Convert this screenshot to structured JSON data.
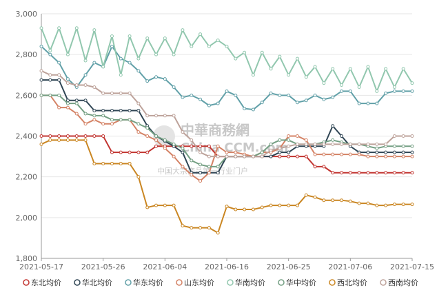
{
  "chart_data": {
    "type": "line",
    "title": "",
    "xlabel": "",
    "ylabel": "",
    "ylim": [
      1800,
      3000
    ],
    "y_ticks": [
      "1,800",
      "2,000",
      "2,200",
      "2,400",
      "2,600",
      "2,800",
      "3,000"
    ],
    "y_tick_values": [
      1800,
      2000,
      2200,
      2400,
      2600,
      2800,
      3000
    ],
    "x": [
      "2021-05-17",
      "2021-05-18",
      "2021-05-19",
      "2021-05-20",
      "2021-05-21",
      "2021-05-24",
      "2021-05-25",
      "2021-05-26",
      "2021-05-27",
      "2021-05-28",
      "2021-05-31",
      "2021-06-01",
      "2021-06-02",
      "2021-06-03",
      "2021-06-04",
      "2021-06-07",
      "2021-06-08",
      "2021-06-09",
      "2021-06-10",
      "2021-06-11",
      "2021-06-15",
      "2021-06-16",
      "2021-06-17",
      "2021-06-18",
      "2021-06-21",
      "2021-06-22",
      "2021-06-23",
      "2021-06-24",
      "2021-06-25",
      "2021-06-28",
      "2021-06-29",
      "2021-06-30",
      "2021-07-01",
      "2021-07-02",
      "2021-07-05",
      "2021-07-06",
      "2021-07-07",
      "2021-07-08",
      "2021-07-09",
      "2021-07-12",
      "2021-07-13",
      "2021-07-14",
      "2021-07-15"
    ],
    "x_tick_labels": [
      "2021-05-17",
      "2021-05-26",
      "2021-06-04",
      "2021-06-16",
      "2021-06-25",
      "2021-07-06",
      "2021-07-15"
    ],
    "x_tick_indices": [
      0,
      7,
      14,
      21,
      28,
      35,
      42
    ],
    "grid": "horizontal",
    "legend_position": "bottom",
    "watermark": {
      "line1": "中華商務網",
      "line2": "China CCM.com",
      "line3": "中国大宗商品第一行业门户"
    },
    "series": [
      {
        "name": "东北均价",
        "color": "#c23531",
        "values": [
          2400,
          2400,
          2400,
          2400,
          2400,
          2400,
          2400,
          2400,
          2320,
          2320,
          2320,
          2320,
          2320,
          2350,
          2350,
          2350,
          2350,
          2350,
          2350,
          2350,
          2300,
          2300,
          2300,
          2300,
          2300,
          2300,
          2300,
          2300,
          2300,
          2300,
          2300,
          2250,
          2250,
          2220,
          2220,
          2220,
          2220,
          2220,
          2220,
          2220,
          2220,
          2220,
          2220
        ]
      },
      {
        "name": "华北均价",
        "color": "#2f4554",
        "values": [
          2675,
          2675,
          2675,
          2575,
          2575,
          2575,
          2525,
          2525,
          2525,
          2525,
          2525,
          2525,
          2450,
          2400,
          2375,
          2350,
          2320,
          2220,
          2220,
          2220,
          2220,
          2300,
          2300,
          2300,
          2300,
          2300,
          2300,
          2320,
          2320,
          2350,
          2350,
          2350,
          2350,
          2450,
          2400,
          2350,
          2320,
          2320,
          2320,
          2320,
          2320,
          2320,
          2320
        ]
      },
      {
        "name": "华东均价",
        "color": "#61a0a8",
        "values": [
          2840,
          2800,
          2760,
          2680,
          2640,
          2700,
          2760,
          2740,
          2840,
          2780,
          2760,
          2720,
          2670,
          2690,
          2680,
          2640,
          2590,
          2600,
          2580,
          2550,
          2560,
          2620,
          2600,
          2535,
          2530,
          2565,
          2610,
          2600,
          2600,
          2565,
          2575,
          2600,
          2580,
          2590,
          2620,
          2620,
          2560,
          2560,
          2560,
          2610,
          2620,
          2620,
          2620
        ]
      },
      {
        "name": "山东均价",
        "color": "#d48265",
        "values": [
          2600,
          2600,
          2540,
          2540,
          2510,
          2460,
          2480,
          2460,
          2460,
          2480,
          2480,
          2420,
          2400,
          2380,
          2340,
          2300,
          2250,
          2210,
          2180,
          2220,
          2350,
          2320,
          2320,
          2310,
          2300,
          2320,
          2320,
          2340,
          2400,
          2400,
          2380,
          2310,
          2310,
          2310,
          2310,
          2310,
          2310,
          2300,
          2300,
          2300,
          2300,
          2300,
          2300
        ]
      },
      {
        "name": "华南均价",
        "color": "#91c7ae",
        "values": [
          2930,
          2820,
          2930,
          2800,
          2930,
          2770,
          2920,
          2740,
          2890,
          2700,
          2890,
          2780,
          2880,
          2800,
          2880,
          2800,
          2920,
          2840,
          2900,
          2840,
          2870,
          2840,
          2780,
          2810,
          2700,
          2810,
          2730,
          2790,
          2700,
          2780,
          2690,
          2740,
          2660,
          2730,
          2650,
          2730,
          2640,
          2740,
          2620,
          2730,
          2640,
          2730,
          2660
        ]
      },
      {
        "name": "华中均价",
        "color": "#749f83",
        "values": [
          2600,
          2600,
          2600,
          2560,
          2560,
          2510,
          2500,
          2500,
          2480,
          2480,
          2480,
          2460,
          2440,
          2400,
          2380,
          2360,
          2340,
          2280,
          2260,
          2250,
          2250,
          2300,
          2300,
          2300,
          2300,
          2320,
          2360,
          2380,
          2380,
          2360,
          2360,
          2360,
          2370,
          2380,
          2370,
          2360,
          2360,
          2350,
          2340,
          2350,
          2350,
          2350,
          2350
        ]
      },
      {
        "name": "西北均价",
        "color": "#ca8622",
        "values": [
          2360,
          2380,
          2380,
          2380,
          2380,
          2380,
          2265,
          2265,
          2265,
          2265,
          2265,
          2200,
          2050,
          2060,
          2060,
          2060,
          1960,
          1950,
          1950,
          1950,
          1925,
          2055,
          2040,
          2040,
          2040,
          2050,
          2060,
          2060,
          2060,
          2060,
          2110,
          2100,
          2085,
          2085,
          2085,
          2080,
          2070,
          2070,
          2060,
          2060,
          2065,
          2065,
          2065
        ]
      },
      {
        "name": "西南均价",
        "color": "#bda29a",
        "values": [
          2720,
          2700,
          2700,
          2660,
          2650,
          2650,
          2640,
          2610,
          2610,
          2610,
          2610,
          2560,
          2500,
          2500,
          2500,
          2500,
          2420,
          2380,
          2320,
          2300,
          2300,
          2300,
          2300,
          2300,
          2300,
          2300,
          2330,
          2340,
          2350,
          2360,
          2360,
          2360,
          2360,
          2360,
          2360,
          2360,
          2360,
          2360,
          2360,
          2360,
          2400,
          2400,
          2400
        ]
      }
    ]
  }
}
